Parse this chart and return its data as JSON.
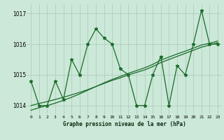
{
  "bg_color": "#cce8d8",
  "grid_color": "#aac8b8",
  "line_color": "#1a6b2a",
  "title": "Graphe pression niveau de la mer (hPa)",
  "ylim": [
    1013.7,
    1017.3
  ],
  "xlim": [
    -0.5,
    23.5
  ],
  "yticks": [
    1014,
    1015,
    1016,
    1017
  ],
  "xticks": [
    0,
    1,
    2,
    3,
    4,
    5,
    6,
    7,
    8,
    9,
    10,
    11,
    12,
    13,
    14,
    15,
    16,
    17,
    18,
    19,
    20,
    21,
    22,
    23
  ],
  "series_main": [
    1014.8,
    1014.0,
    1014.0,
    1014.8,
    1014.2,
    1015.5,
    1015.0,
    1016.0,
    1016.5,
    1016.2,
    1016.0,
    1015.2,
    1015.0,
    1014.0,
    1014.0,
    1015.0,
    1015.6,
    1014.0,
    1015.3,
    1015.0,
    1016.0,
    1017.1,
    1016.0,
    1016.0
  ],
  "trend1": [
    1014.0,
    1014.07,
    1014.13,
    1014.2,
    1014.27,
    1014.35,
    1014.43,
    1014.52,
    1014.62,
    1014.72,
    1014.82,
    1014.9,
    1015.0,
    1015.08,
    1015.16,
    1015.27,
    1015.4,
    1015.5,
    1015.6,
    1015.7,
    1015.8,
    1015.9,
    1015.97,
    1016.05
  ],
  "trend2": [
    1013.85,
    1013.93,
    1014.0,
    1014.08,
    1014.17,
    1014.27,
    1014.38,
    1014.5,
    1014.62,
    1014.74,
    1014.85,
    1014.95,
    1015.05,
    1015.14,
    1015.23,
    1015.34,
    1015.48,
    1015.58,
    1015.68,
    1015.77,
    1015.87,
    1015.97,
    1016.03,
    1016.1
  ]
}
